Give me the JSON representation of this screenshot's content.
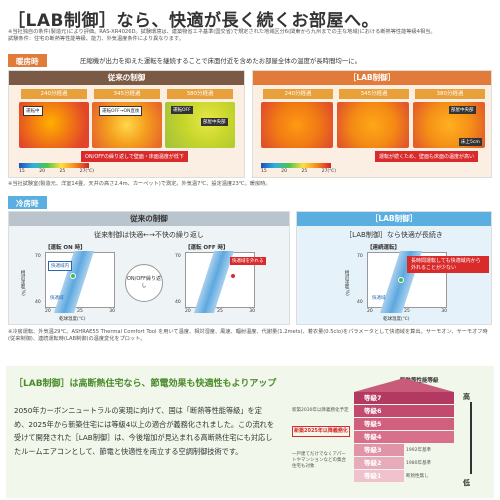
{
  "header": {
    "title": "［LAB制御］なら、快適が長く続くお部屋へ。",
    "note1": "※当社独自の条件(製造元)により評価。RAS-XR4026D。試験環境は、建築物省エネ基準(国交省)で規定された地域区分6(関東から九州までの主な地域)における断熱等性能等級4相当。",
    "note2": "試験条件：住宅の断熱等性能等級、能力、外気温度条件により異なります。"
  },
  "heating": {
    "tab": "暖房時",
    "desc": "圧縮機が出力を抑えた運転を継続することで床面付近を含めたお部屋全体の温度が長時間均一に。",
    "conventional": {
      "head": "従来の制御",
      "times": [
        "240分経過",
        "345分経過",
        "380分経過"
      ],
      "label_running": "運転中",
      "label_off_on": "運転OFF→ON直後",
      "label_off": "運転OFF",
      "label_center": "部屋中央部",
      "caption": "ON/OFFの繰り返しで壁面・床面温度が低下"
    },
    "lab": {
      "head": "［LAB制御］",
      "times": [
        "240分経過",
        "345分経過",
        "380分経過"
      ],
      "label_center": "部屋中央部",
      "label_floor": "床上5cm",
      "caption": "運転が続くため、壁面も床面の温度が高い"
    },
    "scale": [
      "15",
      "20",
      "25",
      "27(℃)"
    ],
    "scale2": [
      "15",
      "20",
      "25",
      "27(℃)"
    ],
    "footnote": "※当社試験室(製造元、洋室14畳、天井の高さ2.4m、カーペット)で測定。外気温7℃、設定温度23℃。暖房時。"
  },
  "cooling": {
    "tab": "冷房時",
    "conventional": {
      "head": "従来の制御",
      "desc": "従来制御は快適←→不快の繰り返し",
      "chart_label": "【運転 ON 時】",
      "chart_label2": "【運転 OFF 時】",
      "comfort_label": "快適域内",
      "out_label": "快適域を外れる",
      "onoff": "ON/OFF繰り返し",
      "comfort_zone": "快適域",
      "ylabel": "相対湿度(%)",
      "xlabel": "乾球温度(℃)",
      "y_top": "70",
      "y_bot": "40",
      "x_ticks": [
        "20",
        "25",
        "30"
      ],
      "y_top2": "70",
      "y_bot2": "40",
      "x_ticks2": [
        "20",
        "25",
        "30"
      ]
    },
    "lab": {
      "head": "［LAB制御］",
      "desc": "［LAB制御］なら快適が長続き",
      "chart_label": "【連続運転】",
      "callout": "長時間運転しても快適域内から外れることが少ない",
      "comfort_zone": "快適域",
      "ylabel": "相対湿度(%)",
      "xlabel": "乾球温度(℃)",
      "y_top": "70",
      "y_bot": "40",
      "x_ticks": [
        "20",
        "25",
        "30"
      ]
    },
    "footnote": "※冷房運転、外気温29℃。ASHRAE55 Thermal Comfort Tool を用いて温度、相対湿度、風速、輻射温度、代謝量(1.2mets)、着衣量(0.5clo)をパラメータとして快適域を算出。サーモオン、サーモオフ時(従来制御)、連続運転時(LAB制御)の温度変化をプロット。"
  },
  "bottom": {
    "title": "［LAB制御］は高断熱住宅なら、節電効果も快適性もよりアップ",
    "body": "2050年カーボンニュートラルの実現に向けて、国は「断熱等性能等級」を定め、2025年から新築住宅には等級4以上の適合が義務化されました。この流れを受けて開発された［LAB制御］は、今後増加が見込まれる高断熱住宅にも対応したルームエアコンとして、節電と快適性を両立する空調制御技術です。",
    "scale_title": "断熱等性能等級",
    "high": "高",
    "low": "低",
    "note_2030": "新築2030年以降義務化予定",
    "note_2025": "新築2025年以降義務化",
    "note_old": "一戸建てだけでなくアパートやマンションなどの集合住宅も対象",
    "levels": [
      {
        "label": "等級7",
        "year": ""
      },
      {
        "label": "等級6",
        "year": ""
      },
      {
        "label": "等級5",
        "year": ""
      },
      {
        "label": "等級4",
        "year": ""
      },
      {
        "label": "等級3",
        "year": "1992年基準"
      },
      {
        "label": "等級2",
        "year": "1980年基準"
      },
      {
        "label": "等級1",
        "year": "断熱性無し"
      }
    ],
    "colors": {
      "heat": "#e07b3a",
      "cool": "#5aaee0",
      "accent": "#d92b2b",
      "grade": "#c95a7a"
    }
  }
}
